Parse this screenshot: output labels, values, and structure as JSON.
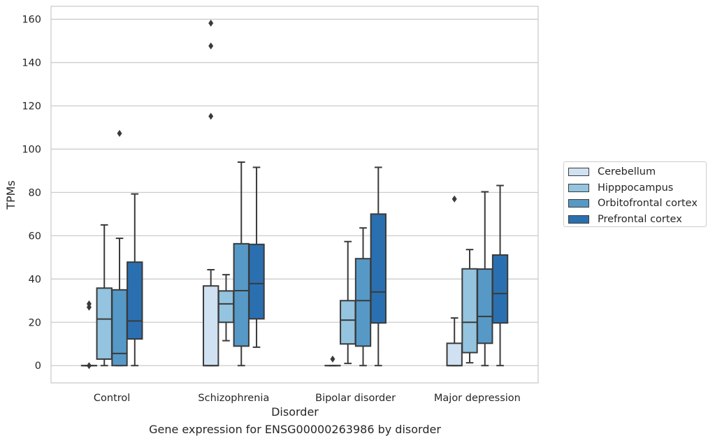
{
  "chart_data": {
    "type": "box",
    "title": "Gene expression for ENSG00000263986 by disorder",
    "xlabel": "Disorder",
    "ylabel": "TPMs",
    "ylim": [
      -8,
      166
    ],
    "yticks": [
      0,
      20,
      40,
      60,
      80,
      100,
      120,
      140,
      160
    ],
    "grid": true,
    "legend_position": "right",
    "categories": [
      "Control",
      "Schizophrenia",
      "Bipolar disorder",
      "Major depression"
    ],
    "series": [
      {
        "name": "Cerebellum",
        "color": "#d0e1f2",
        "boxes": [
          {
            "whisker_low": 0,
            "q1": 0,
            "median": 0,
            "q3": 0,
            "whisker_high": 0,
            "outliers": [
              0,
              27,
              28.5
            ]
          },
          {
            "whisker_low": 0,
            "q1": 0,
            "median": 0,
            "q3": 36.8,
            "whisker_high": 44.3,
            "outliers": [
              115.2,
              147.7,
              158.2
            ]
          },
          {
            "whisker_low": 0,
            "q1": 0,
            "median": 0,
            "q3": 0,
            "whisker_high": 0,
            "outliers": [
              3
            ]
          },
          {
            "whisker_low": 0,
            "q1": 0,
            "median": 0,
            "q3": 10.3,
            "whisker_high": 22,
            "outliers": [
              77
            ]
          }
        ]
      },
      {
        "name": "Hipppocampus",
        "color": "#94c4df",
        "boxes": [
          {
            "whisker_low": 0,
            "q1": 3,
            "median": 21.5,
            "q3": 35.8,
            "whisker_high": 65,
            "outliers": []
          },
          {
            "whisker_low": 11.5,
            "q1": 20,
            "median": 28.5,
            "q3": 34.5,
            "whisker_high": 42,
            "outliers": []
          },
          {
            "whisker_low": 1,
            "q1": 10,
            "median": 21,
            "q3": 30,
            "whisker_high": 57.3,
            "outliers": []
          },
          {
            "whisker_low": 1.3,
            "q1": 6,
            "median": 20,
            "q3": 44.7,
            "whisker_high": 53.6,
            "outliers": []
          }
        ]
      },
      {
        "name": "Orbitofrontal cortex",
        "color": "#5699c7",
        "boxes": [
          {
            "whisker_low": 0,
            "q1": 0,
            "median": 5.6,
            "q3": 35,
            "whisker_high": 58.8,
            "outliers": [
              107.3
            ]
          },
          {
            "whisker_low": 0,
            "q1": 9,
            "median": 34.6,
            "q3": 56.3,
            "whisker_high": 94,
            "outliers": []
          },
          {
            "whisker_low": 0,
            "q1": 9,
            "median": 30,
            "q3": 49.4,
            "whisker_high": 63.6,
            "outliers": []
          },
          {
            "whisker_low": 0,
            "q1": 10.3,
            "median": 22.7,
            "q3": 44.6,
            "whisker_high": 80.3,
            "outliers": []
          }
        ]
      },
      {
        "name": "Prefrontal cortex",
        "color": "#2a70b1",
        "boxes": [
          {
            "whisker_low": 0,
            "q1": 12.3,
            "median": 20.6,
            "q3": 47.8,
            "whisker_high": 79.3,
            "outliers": []
          },
          {
            "whisker_low": 8.5,
            "q1": 21.6,
            "median": 37.9,
            "q3": 56,
            "whisker_high": 91.6,
            "outliers": []
          },
          {
            "whisker_low": 0,
            "q1": 19.7,
            "median": 34,
            "q3": 70,
            "whisker_high": 91.6,
            "outliers": []
          },
          {
            "whisker_low": 0,
            "q1": 19.7,
            "median": 33.3,
            "q3": 51.1,
            "whisker_high": 83.2,
            "outliers": []
          }
        ]
      }
    ]
  },
  "colors": {
    "grid": "#cccccc",
    "frame": "#cccccc",
    "box_edge": "#3a3a3a",
    "text": "#262626"
  }
}
